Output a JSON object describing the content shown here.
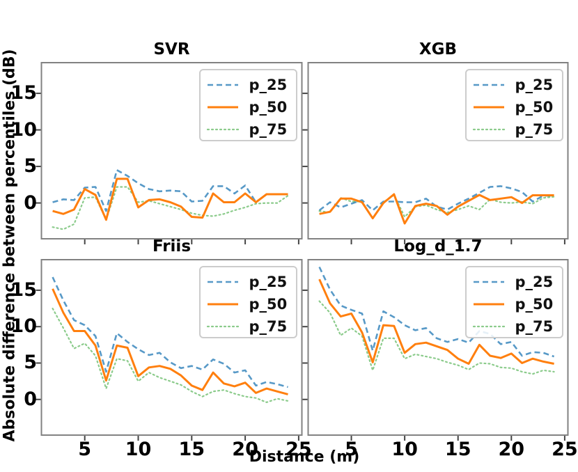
{
  "figure": {
    "ylabel": "Absolute difference between percentiles (dB)",
    "xlabel": "Distance (m)",
    "background_color": "#ffffff",
    "spine_color": "#828282",
    "tick_color": "#444444",
    "legend": {
      "labels": [
        "p_25",
        "p_50",
        "p_75"
      ],
      "border_color": "#cccccc",
      "position": "upper right"
    },
    "axes": {
      "xticks": [
        5,
        10,
        15,
        20,
        25
      ],
      "yticks": [
        0,
        5,
        10,
        15
      ],
      "xlim": [
        0.95,
        25.3
      ],
      "ylim": [
        -4.9,
        19.2
      ],
      "grid": false
    },
    "series_styles": [
      {
        "name": "p_25",
        "color": "#1f77b4",
        "opacity": 0.75,
        "dash": "8 5",
        "width": 2.6,
        "style": "dashed"
      },
      {
        "name": "p_50",
        "color": "#ff7f0e",
        "opacity": 1.0,
        "dash": "",
        "width": 3.0,
        "style": "solid"
      },
      {
        "name": "p_75",
        "color": "#2ca02c",
        "opacity": 0.55,
        "dash": "2 4",
        "width": 2.2,
        "style": "dotted"
      }
    ]
  },
  "chart_data": [
    {
      "type": "line",
      "title": "SVR",
      "x": [
        2,
        3,
        4,
        5,
        6,
        7,
        8,
        9,
        10,
        11,
        12,
        13,
        14,
        15,
        16,
        17,
        18,
        19,
        20,
        21,
        22,
        23,
        24
      ],
      "series": [
        {
          "name": "p_25",
          "values": [
            0.1,
            0.5,
            0.4,
            2.1,
            2.2,
            -1.1,
            4.5,
            3.7,
            2.7,
            1.9,
            1.6,
            1.7,
            1.6,
            0.2,
            0.3,
            2.3,
            2.3,
            1.3,
            2.4,
            0.1,
            1.2,
            1.2,
            1.2
          ]
        },
        {
          "name": "p_50",
          "values": [
            -1.1,
            -1.5,
            -0.9,
            1.9,
            1.1,
            -2.3,
            3.3,
            3.3,
            -0.6,
            0.4,
            0.5,
            0.1,
            -0.5,
            -1.9,
            -2.0,
            1.3,
            0.1,
            0.1,
            1.3,
            0.1,
            1.2,
            1.2,
            1.2
          ]
        },
        {
          "name": "p_75",
          "values": [
            -3.3,
            -3.6,
            -2.9,
            0.7,
            0.8,
            -2.3,
            2.2,
            2.2,
            0.1,
            0.3,
            -0.1,
            -0.5,
            -0.9,
            -1.4,
            -1.7,
            -1.8,
            -1.5,
            -1.0,
            -0.6,
            -0.1,
            0.0,
            0.0,
            1.0
          ]
        }
      ]
    },
    {
      "type": "line",
      "title": "XGB",
      "x": [
        2,
        3,
        4,
        5,
        6,
        7,
        8,
        9,
        10,
        11,
        12,
        13,
        14,
        15,
        16,
        17,
        18,
        19,
        20,
        21,
        22,
        23,
        24
      ],
      "series": [
        {
          "name": "p_25",
          "values": [
            -1.0,
            0.1,
            -0.6,
            -0.1,
            0.4,
            -1.0,
            0.2,
            0.2,
            0.1,
            0.1,
            0.6,
            -0.5,
            -0.9,
            -0.1,
            0.6,
            1.4,
            2.2,
            2.3,
            2.0,
            1.5,
            0.2,
            1.0,
            1.0
          ]
        },
        {
          "name": "p_50",
          "values": [
            -1.5,
            -1.2,
            0.6,
            0.6,
            0.1,
            -2.1,
            0.0,
            1.2,
            -2.8,
            -0.4,
            -0.1,
            -0.4,
            -1.6,
            -0.5,
            0.3,
            1.1,
            0.4,
            0.6,
            0.8,
            0.0,
            1.05,
            1.05,
            1.05
          ]
        },
        {
          "name": "p_75",
          "values": [
            -1.1,
            -1.3,
            0.7,
            0.2,
            0.2,
            -2.1,
            0.1,
            1.1,
            -1.9,
            -0.5,
            -0.3,
            -0.9,
            -1.3,
            -0.9,
            -0.4,
            -0.9,
            0.5,
            0.1,
            0.0,
            0.15,
            -0.1,
            0.7,
            0.85
          ]
        }
      ]
    },
    {
      "type": "line",
      "title": "Friis",
      "x": [
        2,
        3,
        4,
        5,
        6,
        7,
        8,
        9,
        10,
        11,
        12,
        13,
        14,
        15,
        16,
        17,
        18,
        19,
        20,
        21,
        22,
        23,
        24
      ],
      "series": [
        {
          "name": "p_25",
          "values": [
            16.8,
            13.6,
            10.9,
            10.2,
            8.7,
            3.8,
            9.1,
            7.9,
            6.9,
            6.1,
            6.4,
            5.1,
            4.3,
            4.6,
            4.1,
            5.5,
            4.9,
            3.7,
            4.0,
            1.9,
            2.4,
            2.1,
            1.7
          ]
        },
        {
          "name": "p_50",
          "values": [
            15.2,
            11.9,
            9.4,
            9.4,
            7.4,
            2.6,
            7.4,
            7.1,
            3.2,
            4.4,
            4.6,
            4.2,
            3.3,
            1.9,
            1.3,
            3.7,
            2.2,
            1.8,
            2.3,
            0.9,
            1.5,
            1.1,
            0.7
          ]
        },
        {
          "name": "p_75",
          "values": [
            12.5,
            9.8,
            7.0,
            7.7,
            6.0,
            1.5,
            5.6,
            5.3,
            2.5,
            3.7,
            3.0,
            2.5,
            2.0,
            1.1,
            0.4,
            1.1,
            1.3,
            0.8,
            0.4,
            0.2,
            -0.4,
            0.1,
            -0.2
          ]
        }
      ]
    },
    {
      "type": "line",
      "title": "Log_d_1.7",
      "x": [
        2,
        3,
        4,
        5,
        6,
        7,
        8,
        9,
        10,
        11,
        12,
        13,
        14,
        15,
        16,
        17,
        18,
        19,
        20,
        21,
        22,
        23,
        24
      ],
      "series": [
        {
          "name": "p_25",
          "values": [
            18.2,
            15.1,
            12.9,
            12.3,
            11.8,
            6.7,
            12.1,
            11.3,
            10.2,
            9.5,
            9.8,
            8.4,
            7.9,
            8.3,
            7.8,
            9.4,
            9.0,
            7.6,
            7.9,
            6.0,
            6.5,
            6.4,
            5.9
          ]
        },
        {
          "name": "p_50",
          "values": [
            16.5,
            13.2,
            11.4,
            11.8,
            9.2,
            5.1,
            10.2,
            10.1,
            6.4,
            7.6,
            7.8,
            7.3,
            6.8,
            5.6,
            4.9,
            7.5,
            6.0,
            5.7,
            6.3,
            5.0,
            5.6,
            5.2,
            4.9
          ]
        },
        {
          "name": "p_75",
          "values": [
            13.5,
            11.9,
            8.8,
            9.8,
            8.7,
            4.0,
            8.4,
            8.4,
            5.6,
            6.2,
            5.9,
            5.6,
            5.1,
            4.7,
            4.1,
            5.0,
            4.9,
            4.4,
            4.3,
            3.8,
            3.5,
            4.0,
            3.8
          ]
        }
      ]
    }
  ]
}
